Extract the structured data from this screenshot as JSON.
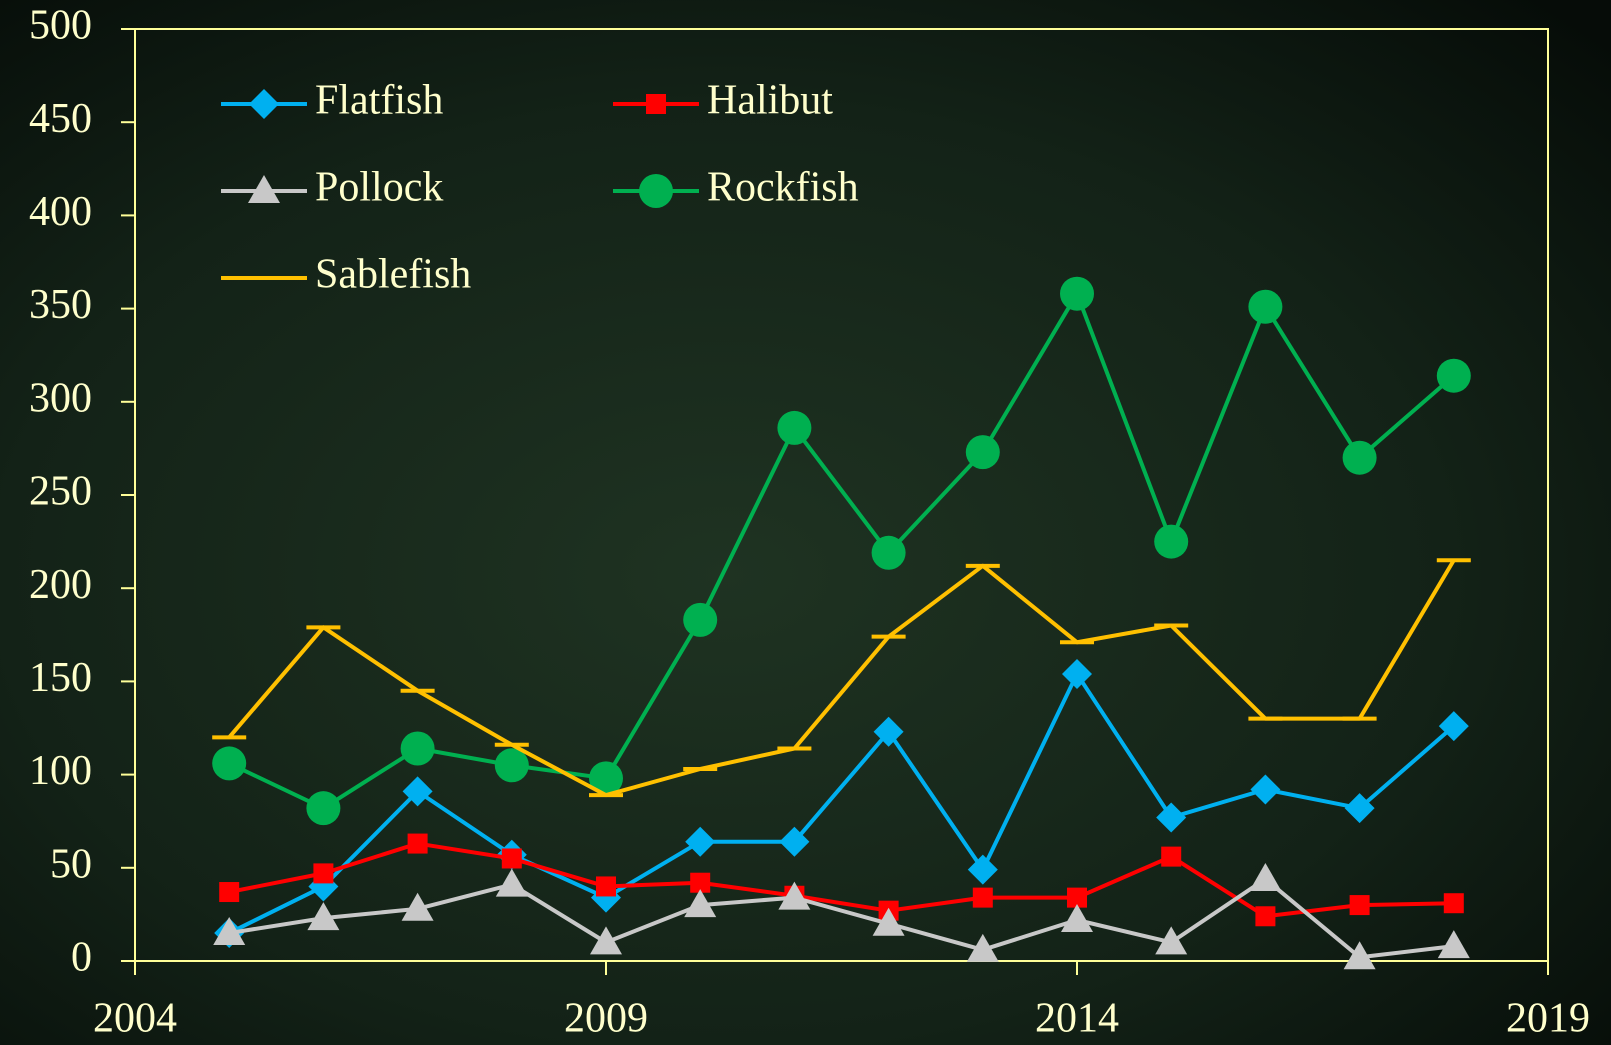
{
  "chart_data": {
    "type": "line",
    "x": [
      2005,
      2006,
      2007,
      2008,
      2009,
      2010,
      2011,
      2012,
      2013,
      2014,
      2015,
      2016,
      2017,
      2018
    ],
    "series": [
      {
        "name": "Flatfish",
        "color": "#00b0f0",
        "marker": "diamond",
        "values": [
          15,
          40,
          91,
          57,
          34,
          64,
          64,
          123,
          49,
          154,
          77,
          92,
          82,
          126
        ]
      },
      {
        "name": "Halibut",
        "color": "#ff0000",
        "marker": "square",
        "values": [
          37,
          47,
          63,
          55,
          40,
          42,
          35,
          27,
          34,
          34,
          56,
          24,
          30,
          31
        ]
      },
      {
        "name": "Pollock",
        "color": "#c8c8c8",
        "marker": "triangle",
        "values": [
          15,
          23,
          28,
          41,
          10,
          30,
          34,
          20,
          6,
          22,
          10,
          44,
          2,
          8
        ]
      },
      {
        "name": "Rockfish",
        "color": "#00b050",
        "marker": "circle",
        "values": [
          106,
          82,
          114,
          105,
          98,
          183,
          286,
          219,
          273,
          358,
          225,
          351,
          270,
          314
        ]
      },
      {
        "name": "Sablefish",
        "color": "#ffc000",
        "marker": "dash",
        "values": [
          120,
          179,
          145,
          116,
          89,
          103,
          114,
          174,
          212,
          171,
          180,
          130,
          130,
          215
        ]
      }
    ],
    "xlim": [
      2004,
      2019
    ],
    "xticks": [
      2004,
      2009,
      2014,
      2019
    ],
    "ylim": [
      0,
      500
    ],
    "yticks": [
      0,
      50,
      100,
      150,
      200,
      250,
      300,
      350,
      400,
      450,
      500
    ],
    "legend": "upper-left"
  }
}
